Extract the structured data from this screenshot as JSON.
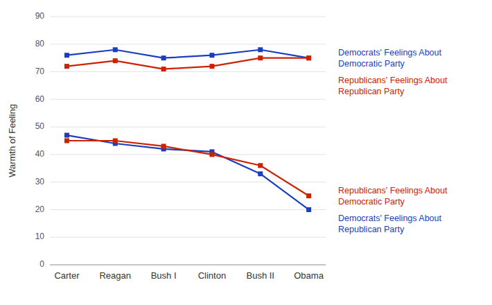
{
  "chart_data": {
    "type": "line",
    "ylabel": "Warmth of Feeling",
    "categories": [
      "Carter",
      "Reagan",
      "Bush I",
      "Clinton",
      "Bush II",
      "Obama"
    ],
    "series": [
      {
        "name": "Democrats' Feelings About\nDemocratic Party",
        "color": "#1A3EBF",
        "values": [
          76,
          78,
          75,
          76,
          78,
          75
        ]
      },
      {
        "name": "Republicans' Feelings About\nRepublican Party",
        "color": "#CC2200",
        "values": [
          72,
          74,
          71,
          72,
          75,
          75
        ]
      },
      {
        "name": "Democrats' Feelings About\nRepublican Party",
        "color": "#1A3EBF",
        "values": [
          47,
          44,
          42,
          41,
          33,
          20
        ]
      },
      {
        "name": "Republicans' Feelings About\nDemocratic Party",
        "color": "#CC2200",
        "values": [
          45,
          45,
          43,
          40,
          36,
          25
        ]
      }
    ],
    "ylim": [
      0,
      90
    ],
    "yticks": [
      0,
      10,
      20,
      30,
      40,
      50,
      60,
      70,
      80,
      90
    ],
    "grid": true,
    "marker": "square"
  }
}
